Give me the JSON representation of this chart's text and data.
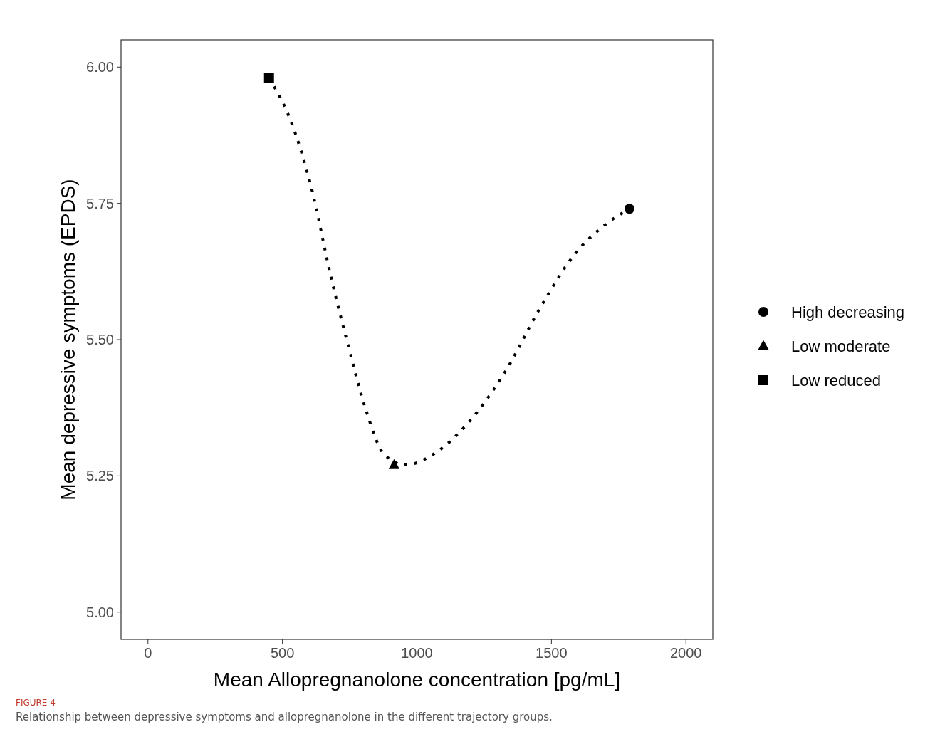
{
  "chart_data": {
    "type": "scatter",
    "xlabel": "Mean Allopregnanolone concentration [pg/mL]",
    "ylabel": "Mean depressive symptoms (EPDS)",
    "xlim": [
      -100,
      2100
    ],
    "xticks": [
      0,
      500,
      1000,
      1500,
      2000
    ],
    "ylim": [
      4.95,
      6.05
    ],
    "yticks": [
      {
        "value": 5,
        "label": "5.00"
      },
      {
        "value": 5.25,
        "label": "5.25"
      },
      {
        "value": 5.5,
        "label": "5.50"
      },
      {
        "value": 5.75,
        "label": "5.75"
      },
      {
        "value": 6,
        "label": "6.00"
      }
    ],
    "grid": false,
    "legend": "right",
    "series": [
      {
        "type": "line",
        "color": "#000000",
        "line_style": "dotted",
        "x": [
          450,
          532,
          612,
          678,
          744,
          811,
          877,
          957,
          1062,
          1195,
          1327,
          1460,
          1592,
          1698,
          1790
        ],
        "values": [
          5.98,
          5.9,
          5.77,
          5.62,
          5.49,
          5.37,
          5.29,
          5.27,
          5.29,
          5.35,
          5.44,
          5.56,
          5.66,
          5.71,
          5.74
        ]
      },
      {
        "name": "High decreasing",
        "color": "#000000",
        "marker": "circle",
        "x": [
          1790
        ],
        "values": [
          5.74
        ]
      },
      {
        "name": "Low moderate",
        "color": "#000000",
        "marker": "triangle",
        "x": [
          915
        ],
        "values": [
          5.27
        ]
      },
      {
        "name": "Low reduced",
        "color": "#000000",
        "marker": "square",
        "x": [
          450
        ],
        "values": [
          5.98
        ]
      }
    ],
    "annotations": [
      "FIGURE 4",
      "Relationship between depressive symptoms and allopregnanolone in the different trajectory groups."
    ]
  }
}
